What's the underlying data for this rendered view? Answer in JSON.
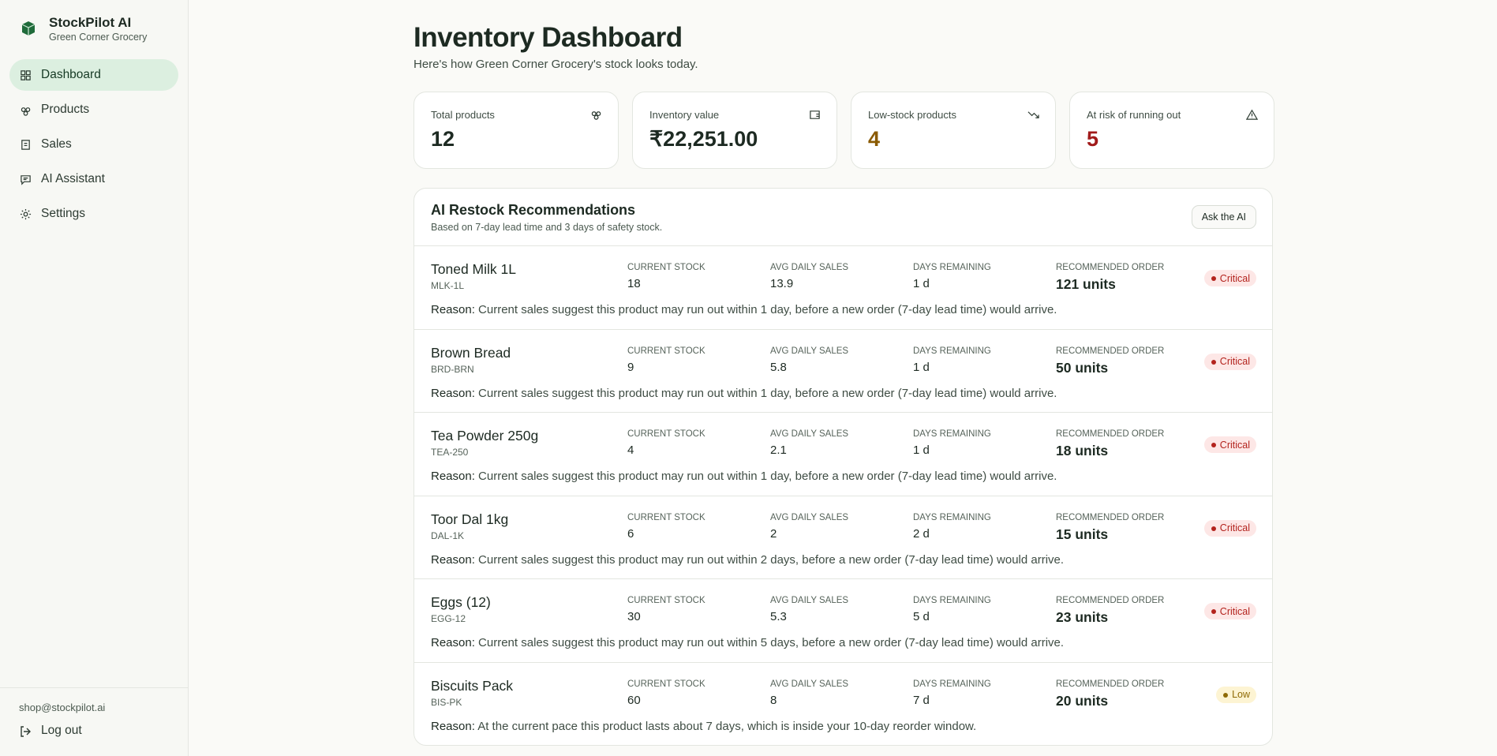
{
  "sidebar": {
    "brand": "StockPilot AI",
    "store": "Green Corner Grocery",
    "nav": [
      "Dashboard",
      "Products",
      "Sales",
      "AI Assistant",
      "Settings"
    ],
    "email": "shop@stockpilot.ai",
    "logout": "Log out"
  },
  "header": {
    "title": "Inventory Dashboard",
    "subtitle": "Here's how Green Corner Grocery's stock looks today."
  },
  "stats": [
    {
      "label": "Total products",
      "value": 12
    },
    {
      "label": "Inventory value",
      "value": "₹22,251.00"
    },
    {
      "label": "Low-stock products",
      "value": 4
    },
    {
      "label": "At risk of running out",
      "value": 5
    }
  ],
  "recommendations": {
    "title": "AI Restock Recommendations",
    "subtitle": "Based on 7-day lead time and 3 days of safety stock.",
    "button": "Ask the AI",
    "columns": [
      "CURRENT STOCK",
      "AVG DAILY SALES",
      "DAYS REMAINING",
      "RECOMMENDED ORDER"
    ],
    "reason_label": "Reason:",
    "items": [
      {
        "name": "Toned Milk 1L",
        "sku": "MLK-1L",
        "current_stock": 18,
        "avg_daily_sales": 13.9,
        "days_remaining": "1 d",
        "recommended_order": "121 units",
        "status": "Critical",
        "reason": "Current sales suggest this product may run out within 1 day, before a new order (7-day lead time) would arrive."
      },
      {
        "name": "Brown Bread",
        "sku": "BRD-BRN",
        "current_stock": 9,
        "avg_daily_sales": 5.8,
        "days_remaining": "1 d",
        "recommended_order": "50 units",
        "status": "Critical",
        "reason": "Current sales suggest this product may run out within 1 day, before a new order (7-day lead time) would arrive."
      },
      {
        "name": "Tea Powder 250g",
        "sku": "TEA-250",
        "current_stock": 4,
        "avg_daily_sales": 2.1,
        "days_remaining": "1 d",
        "recommended_order": "18 units",
        "status": "Critical",
        "reason": "Current sales suggest this product may run out within 1 day, before a new order (7-day lead time) would arrive."
      },
      {
        "name": "Toor Dal 1kg",
        "sku": "DAL-1K",
        "current_stock": 6,
        "avg_daily_sales": 2,
        "days_remaining": "2 d",
        "recommended_order": "15 units",
        "status": "Critical",
        "reason": "Current sales suggest this product may run out within 2 days, before a new order (7-day lead time) would arrive."
      },
      {
        "name": "Eggs (12)",
        "sku": "EGG-12",
        "current_stock": 30,
        "avg_daily_sales": 5.3,
        "days_remaining": "5 d",
        "recommended_order": "23 units",
        "status": "Critical",
        "reason": "Current sales suggest this product may run out within 5 days, before a new order (7-day lead time) would arrive."
      },
      {
        "name": "Biscuits Pack",
        "sku": "BIS-PK",
        "current_stock": 60,
        "avg_daily_sales": 8,
        "days_remaining": "7 d",
        "recommended_order": "20 units",
        "status": "Low",
        "reason": "At the current pace this product lasts about 7 days, which is inside your 10-day reorder window."
      }
    ]
  }
}
